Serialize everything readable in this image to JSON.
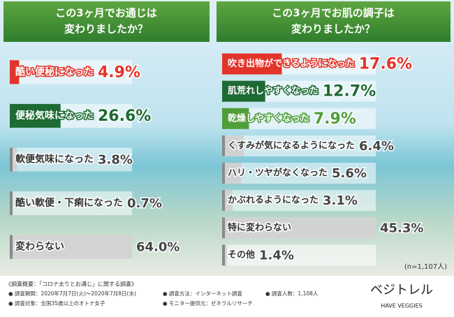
{
  "chart_data": [
    {
      "type": "hbar",
      "title": [
        "この3ヶ月でお通じは",
        "変わりましたか？"
      ],
      "categories": [
        "酷い便秘になった",
        "便秘気味になった",
        "軟便気味になった",
        "酷い軟便・下痢になった",
        "変わらない"
      ],
      "values": [
        4.9,
        26.6,
        3.8,
        0.7,
        64.0
      ],
      "value_labels": [
        "4.9%",
        "26.6%",
        "3.8%",
        "0.7%",
        "64.0%"
      ],
      "colors": [
        "#e3342a",
        "#1d6a33",
        "#8a8a8a",
        "#8a8a8a",
        "#8a8a8a"
      ]
    },
    {
      "type": "hbar",
      "title": [
        "この3ヶ月でお肌の調子は",
        "変わりましたか？"
      ],
      "categories": [
        "吹き出物ができるようになった",
        "肌荒れしやすくなった",
        "乾燥しやすくなった",
        "くすみが気になるようになった",
        "ハリ・ツヤがなくなった",
        "かぶれるようになった",
        "特に変わらない",
        "その他"
      ],
      "values": [
        17.6,
        12.7,
        7.9,
        6.4,
        5.6,
        3.1,
        45.3,
        1.4
      ],
      "value_labels": [
        "17.6%",
        "12.7%",
        "7.9%",
        "6.4%",
        "5.6%",
        "3.1%",
        "45.3%",
        "1.4%"
      ],
      "colors": [
        "#e3342a",
        "#1d6a33",
        "#4f9e3a",
        "#8a8a8a",
        "#8a8a8a",
        "#8a8a8a",
        "#8a8a8a",
        "#8a8a8a"
      ],
      "note": "(n=1,107人)"
    }
  ],
  "footer": {
    "heading": "《調査概要：「コロナ太りとお通じ」に関する調査》",
    "items": [
      "● 調査期間：2020年7月7日(火)～2020年7月8日(水)",
      "● 調査方法：インターネット調査",
      "● 調査人数：1,108人",
      "● 調査対象：全国35歳以上のオトナ女子",
      "● モニター提供元：ゼネラルリサーチ"
    ],
    "logo": "ベジトレル",
    "logo_sub": "HAVE VEGGIES"
  }
}
